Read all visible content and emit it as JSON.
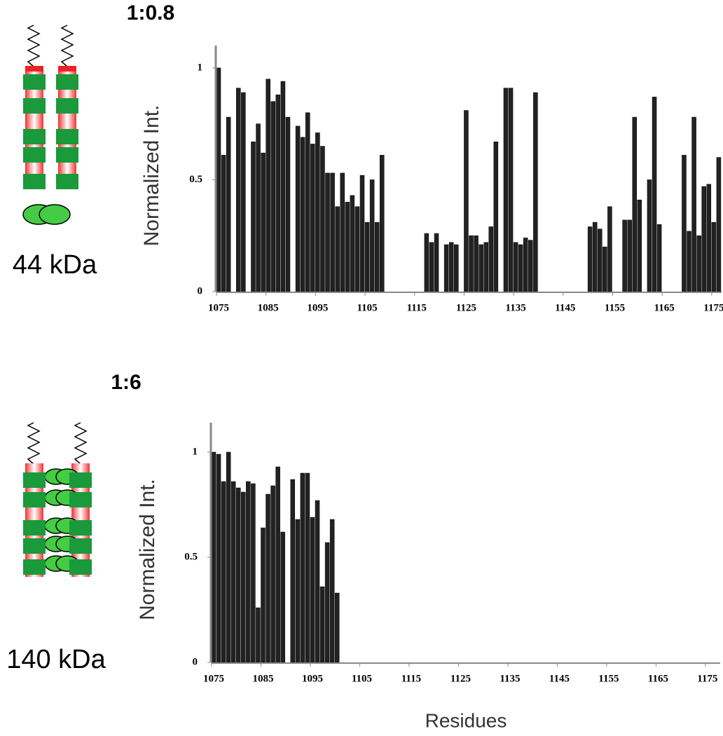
{
  "chart_data": [
    {
      "type": "bar",
      "title": "1:0.8",
      "annotation": "44 kDa",
      "ylabel": "Normalized Int.",
      "color": "#222222",
      "x": [
        1075,
        1076,
        1077,
        1079,
        1080,
        1082,
        1083,
        1084,
        1085,
        1086,
        1087,
        1088,
        1089,
        1091,
        1092,
        1093,
        1094,
        1095,
        1096,
        1097,
        1098,
        1099,
        1100,
        1101,
        1102,
        1103,
        1104,
        1105,
        1106,
        1107,
        1108,
        1117,
        1118,
        1119,
        1121,
        1122,
        1123,
        1125,
        1126,
        1127,
        1128,
        1129,
        1130,
        1131,
        1133,
        1134,
        1135,
        1136,
        1137,
        1138,
        1139,
        1150,
        1151,
        1152,
        1153,
        1154,
        1157,
        1158,
        1159,
        1160,
        1162,
        1163,
        1164,
        1169,
        1170,
        1171,
        1172,
        1173,
        1174,
        1175,
        1176
      ],
      "values": [
        1.0,
        0.61,
        0.78,
        0.91,
        0.89,
        0.67,
        0.75,
        0.62,
        0.95,
        0.85,
        0.88,
        0.94,
        0.78,
        0.74,
        0.69,
        0.8,
        0.66,
        0.71,
        0.65,
        0.53,
        0.53,
        0.38,
        0.53,
        0.4,
        0.43,
        0.38,
        0.52,
        0.31,
        0.5,
        0.31,
        0.61,
        0.26,
        0.22,
        0.26,
        0.21,
        0.22,
        0.21,
        0.81,
        0.25,
        0.25,
        0.21,
        0.22,
        0.29,
        0.67,
        0.91,
        0.91,
        0.22,
        0.21,
        0.24,
        0.23,
        0.89,
        0.29,
        0.31,
        0.28,
        0.2,
        0.38,
        0.32,
        0.32,
        0.78,
        0.41,
        0.5,
        0.87,
        0.3,
        0.61,
        0.27,
        0.78,
        0.25,
        0.47,
        0.48,
        0.31,
        0.6
      ],
      "xlim": [
        1075,
        1177
      ],
      "ylim": [
        0,
        1.1
      ],
      "xticks": [
        1075,
        1085,
        1095,
        1105,
        1115,
        1125,
        1135,
        1145,
        1155,
        1165,
        1175
      ],
      "yticks": [
        0,
        0.5,
        1
      ]
    },
    {
      "type": "bar",
      "title": "1:6",
      "annotation": "140 kDa",
      "ylabel": "Normalized Int.",
      "xlabel": "Residues",
      "color": "#222222",
      "x": [
        1075,
        1076,
        1077,
        1078,
        1079,
        1080,
        1081,
        1082,
        1083,
        1084,
        1085,
        1086,
        1087,
        1088,
        1089,
        1091,
        1092,
        1093,
        1094,
        1095,
        1096,
        1097,
        1098,
        1099,
        1100
      ],
      "values": [
        1.0,
        0.99,
        0.86,
        1.0,
        0.86,
        0.83,
        0.81,
        0.86,
        0.85,
        0.26,
        0.64,
        0.8,
        0.84,
        0.93,
        0.62,
        0.87,
        0.68,
        0.9,
        0.9,
        0.69,
        0.77,
        0.36,
        0.57,
        0.68,
        0.33
      ],
      "xlim": [
        1075,
        1178
      ],
      "ylim": [
        0,
        1.14
      ],
      "xticks": [
        1075,
        1085,
        1095,
        1105,
        1115,
        1125,
        1135,
        1145,
        1155,
        1165,
        1175
      ],
      "yticks": [
        0,
        0.5,
        1
      ]
    }
  ]
}
